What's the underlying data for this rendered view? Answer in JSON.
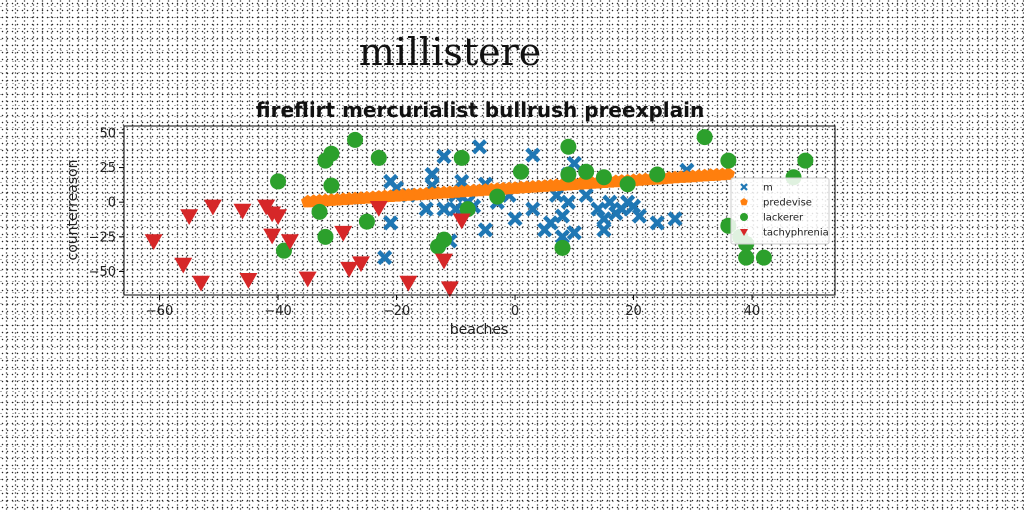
{
  "page": {
    "title": "millistere"
  },
  "chart_data": {
    "type": "scatter",
    "title": "fireflirt mercurialist bullrush preexplain",
    "xlabel": "beaches",
    "ylabel": "counterreason",
    "xlim": [
      -66,
      54
    ],
    "ylim": [
      -67,
      55
    ],
    "xticks": [
      -60,
      -40,
      -20,
      0,
      20,
      40
    ],
    "yticks": [
      -50,
      -25,
      0,
      25,
      50
    ],
    "grid": false,
    "legend_position": "right",
    "series": [
      {
        "name": "m",
        "marker": "x",
        "color": "#1f77b4",
        "points": [
          [
            -22,
            -40
          ],
          [
            -21,
            -15
          ],
          [
            -21,
            15
          ],
          [
            -20,
            10
          ],
          [
            -18,
            5
          ],
          [
            -15,
            -5
          ],
          [
            -14,
            12
          ],
          [
            -14,
            20
          ],
          [
            -12,
            33
          ],
          [
            -12,
            -5
          ],
          [
            -11,
            -28
          ],
          [
            -10,
            -5
          ],
          [
            -10,
            5
          ],
          [
            -9,
            15
          ],
          [
            -8,
            0
          ],
          [
            -7,
            -3
          ],
          [
            -6,
            40
          ],
          [
            -5,
            -20
          ],
          [
            -5,
            13
          ],
          [
            -3,
            0
          ],
          [
            -1,
            5
          ],
          [
            0,
            -12
          ],
          [
            3,
            -5
          ],
          [
            3,
            34
          ],
          [
            5,
            -20
          ],
          [
            6,
            -15
          ],
          [
            7,
            5
          ],
          [
            8,
            -10
          ],
          [
            8,
            -25
          ],
          [
            9,
            0
          ],
          [
            9,
            20
          ],
          [
            10,
            -22
          ],
          [
            10,
            28
          ],
          [
            12,
            5
          ],
          [
            14,
            -5
          ],
          [
            15,
            -12
          ],
          [
            15,
            -20
          ],
          [
            16,
            0
          ],
          [
            17,
            -8
          ],
          [
            18,
            -5
          ],
          [
            19,
            0
          ],
          [
            20,
            -3
          ],
          [
            21,
            -10
          ],
          [
            24,
            -15
          ],
          [
            27,
            -12
          ],
          [
            29,
            23
          ]
        ]
      },
      {
        "name": "predevise",
        "marker": "pentagon",
        "color": "#ff7f0e",
        "points": [
          [
            -35,
            0.3
          ],
          [
            -34,
            0.6
          ],
          [
            -33,
            0.9
          ],
          [
            -32,
            1.2
          ],
          [
            -31,
            1.4
          ],
          [
            -30,
            1.7
          ],
          [
            -29,
            2.0
          ],
          [
            -28,
            2.3
          ],
          [
            -27,
            2.6
          ],
          [
            -26,
            2.8
          ],
          [
            -25,
            3.1
          ],
          [
            -24,
            3.4
          ],
          [
            -23,
            3.7
          ],
          [
            -22,
            4.0
          ],
          [
            -21,
            4.2
          ],
          [
            -20,
            4.5
          ],
          [
            -19,
            4.8
          ],
          [
            -18,
            5.1
          ],
          [
            -17,
            5.4
          ],
          [
            -16,
            5.6
          ],
          [
            -15,
            5.9
          ],
          [
            -14,
            6.2
          ],
          [
            -13,
            6.5
          ],
          [
            -12,
            6.8
          ],
          [
            -11,
            7.0
          ],
          [
            -10,
            7.3
          ],
          [
            -9,
            7.6
          ],
          [
            -8,
            7.9
          ],
          [
            -7,
            8.2
          ],
          [
            -6,
            8.4
          ],
          [
            -5,
            8.7
          ],
          [
            -4,
            9.0
          ],
          [
            -3,
            9.3
          ],
          [
            -2,
            9.6
          ],
          [
            -1,
            9.8
          ],
          [
            0,
            10.1
          ],
          [
            1,
            10.4
          ],
          [
            2,
            10.7
          ],
          [
            3,
            11.0
          ],
          [
            4,
            11.2
          ],
          [
            5,
            11.5
          ],
          [
            6,
            11.8
          ],
          [
            7,
            12.1
          ],
          [
            8,
            12.4
          ],
          [
            9,
            12.6
          ],
          [
            10,
            12.9
          ],
          [
            11,
            13.2
          ],
          [
            12,
            13.5
          ],
          [
            13,
            13.8
          ],
          [
            14,
            14.0
          ],
          [
            15,
            14.3
          ],
          [
            16,
            14.6
          ],
          [
            17,
            14.9
          ],
          [
            18,
            15.2
          ],
          [
            19,
            15.4
          ],
          [
            20,
            15.7
          ],
          [
            21,
            16.0
          ],
          [
            22,
            16.3
          ],
          [
            23,
            16.6
          ],
          [
            24,
            16.8
          ],
          [
            25,
            17.1
          ],
          [
            26,
            17.4
          ],
          [
            27,
            17.7
          ],
          [
            28,
            18.0
          ],
          [
            29,
            18.2
          ],
          [
            30,
            18.5
          ],
          [
            31,
            18.8
          ],
          [
            32,
            19.1
          ],
          [
            33,
            19.4
          ],
          [
            34,
            19.6
          ],
          [
            35,
            19.9
          ],
          [
            36,
            20.2
          ]
        ]
      },
      {
        "name": "lackerer",
        "marker": "circle",
        "color": "#2ca02c",
        "points": [
          [
            -40,
            15
          ],
          [
            -39,
            -35
          ],
          [
            -33,
            -7
          ],
          [
            -32,
            30
          ],
          [
            -32,
            -25
          ],
          [
            -31,
            35
          ],
          [
            -31,
            12
          ],
          [
            -27,
            45
          ],
          [
            -25,
            -14
          ],
          [
            -23,
            32
          ],
          [
            -13,
            -32
          ],
          [
            -12,
            -27
          ],
          [
            -8,
            -5
          ],
          [
            -9,
            32
          ],
          [
            -3,
            4
          ],
          [
            1,
            22
          ],
          [
            8,
            -33
          ],
          [
            9,
            40
          ],
          [
            9,
            20
          ],
          [
            12,
            22
          ],
          [
            15,
            18
          ],
          [
            19,
            13
          ],
          [
            24,
            20
          ],
          [
            32,
            47
          ],
          [
            36,
            30
          ],
          [
            36,
            -17
          ],
          [
            38,
            -25
          ],
          [
            39,
            -30
          ],
          [
            39,
            -40
          ],
          [
            42,
            -40
          ],
          [
            47,
            18
          ],
          [
            49,
            30
          ]
        ]
      },
      {
        "name": "tachyphrenia",
        "marker": "triangle-down",
        "color": "#d62728",
        "points": [
          [
            -61,
            -28
          ],
          [
            -56,
            -45
          ],
          [
            -55,
            -10
          ],
          [
            -53,
            -58
          ],
          [
            -51,
            -3
          ],
          [
            -46,
            -6
          ],
          [
            -45,
            -56
          ],
          [
            -42,
            -3
          ],
          [
            -41,
            -8
          ],
          [
            -41,
            -24
          ],
          [
            -40,
            -10
          ],
          [
            -38,
            -28
          ],
          [
            -35,
            -55
          ],
          [
            -29,
            -22
          ],
          [
            -28,
            -48
          ],
          [
            -26,
            -44
          ],
          [
            -23,
            -4
          ],
          [
            -18,
            -58
          ],
          [
            -12,
            -42
          ],
          [
            -11,
            -62
          ],
          [
            -9,
            -13
          ]
        ]
      }
    ]
  }
}
